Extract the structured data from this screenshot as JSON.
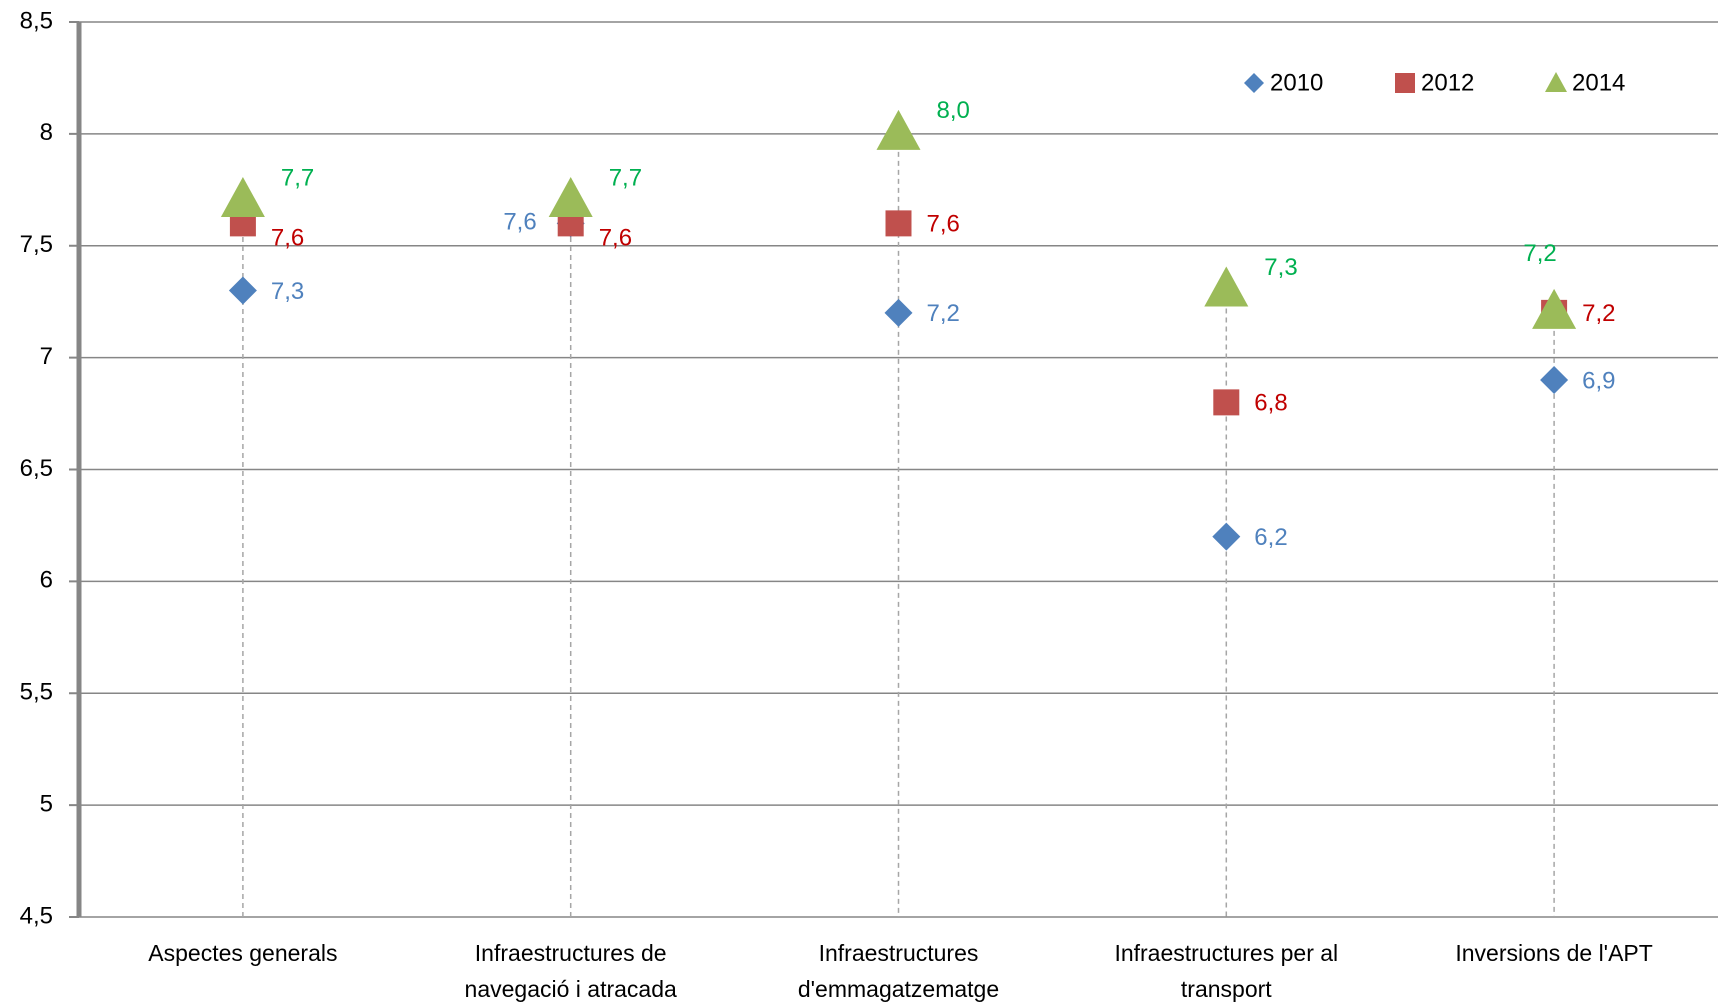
{
  "chart_data": {
    "type": "scatter",
    "categories": [
      "Aspectes generals",
      "Infraestructures de navegació i atracada",
      "Infraestructures d'emmagatzematge",
      "Infraestructures per al transport",
      "Inversions de l'APT"
    ],
    "series": [
      {
        "name": "2010",
        "color": "#4f81bd",
        "label_color": "#4f81bd",
        "marker": "diamond",
        "values": [
          7.3,
          7.6,
          7.2,
          6.2,
          6.9
        ],
        "value_labels": [
          "7,3",
          "7,6",
          "7,2",
          "6,2",
          "6,9"
        ]
      },
      {
        "name": "2012",
        "color": "#c0504d",
        "label_color": "#c00000",
        "marker": "square",
        "values": [
          7.6,
          7.6,
          7.6,
          6.8,
          7.2
        ],
        "value_labels": [
          "7,6",
          "7,6",
          "7,6",
          "6,8",
          "7,2"
        ]
      },
      {
        "name": "2014",
        "color": "#9bbb59",
        "label_color": "#00b050",
        "marker": "triangle",
        "values": [
          7.7,
          7.7,
          8.0,
          7.3,
          7.2
        ],
        "value_labels": [
          "7,7",
          "7,7",
          "8,0",
          "7,3",
          "7,2"
        ]
      }
    ],
    "ylim": [
      4.5,
      8.5
    ],
    "yticks": [
      {
        "value": 4.5,
        "label": "4,5"
      },
      5,
      {
        "value": 5.5,
        "label": "5,5"
      },
      6,
      {
        "value": 6.5,
        "label": "6,5"
      },
      7,
      {
        "value": 7.5,
        "label": "7,5"
      },
      8,
      {
        "value": 8.5,
        "label": "8,5"
      }
    ],
    "grid": true,
    "legend": "top-right"
  }
}
